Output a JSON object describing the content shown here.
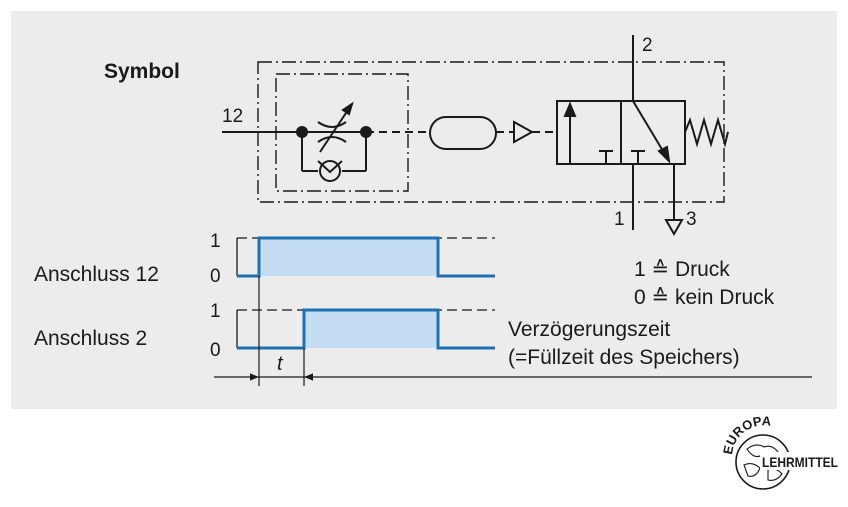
{
  "symbol_title": "Symbol",
  "ports": {
    "input": "12",
    "output": "2",
    "supply": "1",
    "exhaust": "3"
  },
  "timing": {
    "row1_label": "Anschluss 12",
    "row2_label": "Anschluss 2",
    "level_high": "1",
    "level_low": "0",
    "delay_symbol": "t",
    "row1_signal": [
      0,
      1,
      1,
      1,
      0
    ],
    "row2_signal": [
      0,
      0,
      1,
      1,
      0
    ]
  },
  "legend": {
    "line1": "1 ≙ Druck",
    "line2": "0 ≙ kein Druck",
    "delay_line1": "Verzögerungszeit",
    "delay_line2": "(=Füllzeit des Speichers)"
  },
  "logo": {
    "top_text": "EUROPA",
    "side_text": "LEHRMITTEL"
  },
  "colors": {
    "panel": "#ececec",
    "signal": "#1f6fb5",
    "fill": "#c4ddf2",
    "line": "#1a1a1a"
  }
}
